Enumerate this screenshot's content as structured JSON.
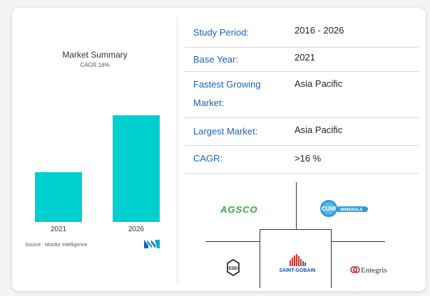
{
  "chart": {
    "title": "Market Summary",
    "subtitle": "CAGR 16%",
    "source": "Source : Mordor Intelligence",
    "bar_color": "#00cfd0"
  },
  "chart_data": {
    "type": "bar",
    "categories": [
      "2021",
      "2026"
    ],
    "values": [
      1,
      2.14
    ],
    "title": "Market Summary",
    "subtitle": "CAGR 16%",
    "xlabel": "",
    "ylabel": ""
  },
  "summary": {
    "rows": [
      {
        "label": "Study Period:",
        "value": "2016 - 2026"
      },
      {
        "label": "Base Year:",
        "value": "2021"
      },
      {
        "label": "Fastest Growing Market:",
        "label_line1": "Fastest Growing",
        "label_line2": "Market:",
        "value": "Asia Pacific"
      },
      {
        "label": "Largest Market:",
        "value": "Asia Pacific"
      },
      {
        "label": "CAGR:",
        "value": ">16 %"
      }
    ],
    "label_color": "#1c62b8"
  },
  "key_players": {
    "logos": [
      "AGSCO",
      "CUMI",
      "MINERALS",
      "ESD",
      "SAINT-GOBAIN",
      "Entegris"
    ]
  }
}
